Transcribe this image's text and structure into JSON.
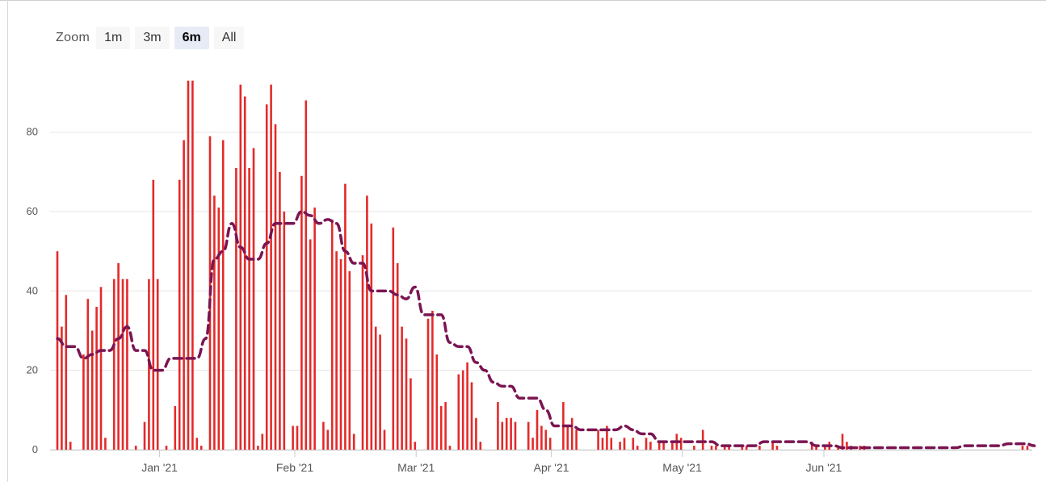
{
  "zoom": {
    "label": "Zoom",
    "buttons": [
      {
        "label": "1m",
        "active": false
      },
      {
        "label": "3m",
        "active": false
      },
      {
        "label": "6m",
        "active": true
      },
      {
        "label": "All",
        "active": false
      }
    ]
  },
  "chart_data": {
    "type": "bar",
    "title": "",
    "xlabel": "",
    "ylabel": "",
    "ylim": [
      0,
      95
    ],
    "yticks": [
      0,
      20,
      40,
      60,
      80
    ],
    "xticks": [
      "Jan '21",
      "Feb '21",
      "Mar '21",
      "Apr '21",
      "May '21",
      "Jun '21"
    ],
    "grid": true,
    "colors": {
      "bars": "#e32a2a",
      "average": "#7b1552"
    },
    "series": [
      {
        "type": "bar",
        "x_start": "2020-12-08",
        "values": [
          50,
          31,
          39,
          2,
          0,
          0,
          24,
          38,
          30,
          36,
          41,
          3,
          0,
          43,
          47,
          43,
          43,
          0,
          1,
          0,
          7,
          43,
          68,
          43,
          0,
          1,
          0,
          11,
          68,
          78,
          93,
          93,
          3,
          1,
          0,
          79,
          64,
          61,
          78,
          0,
          0,
          71,
          92,
          89,
          71,
          76,
          1,
          4,
          87,
          92,
          82,
          70,
          60,
          0,
          6,
          6,
          69,
          88,
          53,
          61,
          0,
          7,
          5,
          58,
          50,
          48,
          67,
          45,
          4,
          0,
          49,
          64,
          57,
          31,
          29,
          5,
          0,
          56,
          47,
          31,
          28,
          18,
          2,
          0,
          0,
          33,
          35,
          24,
          11,
          12,
          1,
          0,
          19,
          20,
          22,
          17,
          8,
          2,
          0,
          0,
          0,
          12,
          7,
          8,
          8,
          7,
          0,
          0,
          7,
          3,
          10,
          6,
          5,
          3,
          0,
          0,
          12,
          6,
          8,
          5,
          0,
          0,
          0,
          0,
          5,
          3,
          6,
          3,
          0,
          2,
          3,
          0,
          3,
          1,
          0,
          3,
          2,
          0,
          2,
          2,
          0,
          2,
          4,
          3,
          0,
          0,
          1,
          0,
          5,
          0,
          1,
          1,
          0,
          1,
          1,
          0,
          0,
          1,
          1,
          0,
          0,
          1,
          0,
          0,
          2,
          1,
          0,
          0,
          0,
          0,
          0,
          0,
          0,
          2,
          1,
          0,
          1,
          2,
          0,
          1,
          4,
          2,
          1,
          0,
          1,
          1
        ],
        "values_after_gap": [
          1,
          1
        ]
      },
      {
        "type": "line",
        "style": "dashed",
        "x_start": "2020-12-08",
        "x_step_days": 2,
        "values": [
          28,
          26,
          26,
          23,
          24,
          25,
          25,
          28,
          31,
          25,
          25,
          20,
          20,
          23,
          23,
          23,
          23,
          28,
          48,
          50,
          57,
          51,
          48,
          48,
          52,
          57,
          57,
          57,
          60,
          59,
          57,
          58,
          57,
          50,
          47,
          47,
          40,
          40,
          40,
          39,
          38,
          41,
          34,
          34,
          34,
          27,
          26,
          26,
          22,
          20,
          17,
          16,
          16,
          13,
          13,
          13,
          10,
          6,
          6,
          6,
          5,
          5,
          5,
          5,
          5,
          6,
          5,
          4,
          4,
          2,
          2,
          2,
          2,
          2,
          2,
          2,
          1,
          1,
          1,
          1,
          1,
          2,
          2,
          2,
          2,
          2,
          2,
          1,
          1,
          1,
          0.5,
          0.5,
          0.5,
          0.5,
          0.5,
          0.5,
          0.5,
          0.5,
          0.5,
          0.5,
          0.5,
          0.5,
          0.5,
          0.5,
          1,
          1,
          1,
          1,
          1,
          1.5,
          1.5,
          1.5,
          1
        ]
      }
    ]
  }
}
